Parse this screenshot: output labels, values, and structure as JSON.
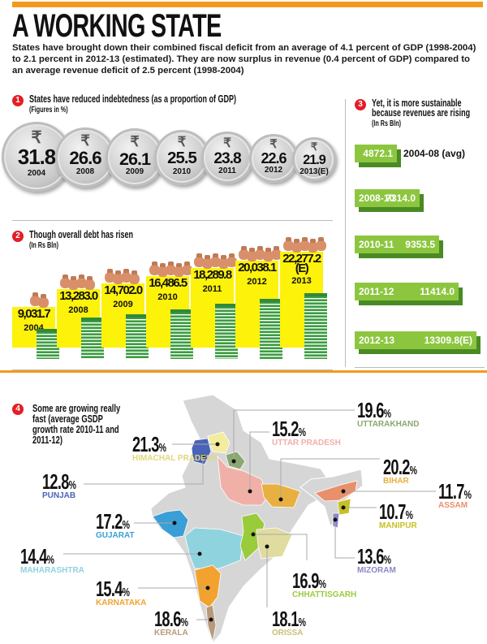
{
  "title": "A WORKING STATE",
  "intro": "States have brought down their combined fiscal deficit from an average of 4.1 percent of GDP (1998-2004) to 2.1 percent in 2012-13 (estimated). They are now surplus in revenue (0.4 percent of GDP) compared to an average revenue deficit of 2.5 percent (1998-2004)",
  "colors": {
    "accent": "#f39a1e",
    "badge": "#e41e26",
    "debt_bar": "#fdf20a",
    "revenue_bar": "#8cc63f"
  },
  "chart_data": [
    {
      "type": "bar",
      "number": "1",
      "title": "States have reduced indebtedness (as a proportion of GDP)",
      "subtitle": "(Figures in %)",
      "icon": "rupee-coin-icon",
      "categories": [
        "2004",
        "2008",
        "2009",
        "2010",
        "2011",
        "2012",
        "2013"
      ],
      "category_suffix": [
        "",
        "",
        "",
        "",
        "",
        "",
        "(E)"
      ],
      "values": [
        31.8,
        26.6,
        26.1,
        25.5,
        23.8,
        22.6,
        21.9
      ],
      "value_labels": [
        "31.8",
        "26.6",
        "26.1",
        "25.5",
        "23.8",
        "22.6",
        "21.9"
      ]
    },
    {
      "type": "bar",
      "number": "2",
      "title": "Though overall debt has risen",
      "subtitle": "(In Rs Bln)",
      "categories": [
        "2004",
        "2008",
        "2009",
        "2010",
        "2011",
        "2012",
        "2013"
      ],
      "values": [
        9031.7,
        13283.0,
        14702.0,
        16486.5,
        18289.8,
        20038.1,
        22277.2
      ],
      "value_labels": [
        "9,031.7",
        "13,283.0",
        "14,702.0",
        "16,486.5",
        "18,289.8",
        "20,038.1",
        "22,277.2\n(E)"
      ]
    },
    {
      "type": "bar",
      "orientation": "horizontal",
      "number": "3",
      "title": "Yet, it is more sustainable because revenues are rising",
      "subtitle": "(In Rs Bln)",
      "categories": [
        "2004-08 (avg)",
        "2008-10",
        "2010-11",
        "2011-12",
        "2012-13"
      ],
      "values": [
        4872.1,
        7314.0,
        9353.5,
        11414.0,
        13309.8
      ],
      "value_labels": [
        "4872.1",
        "7314.0",
        "9353.5",
        "11414.0",
        "13309.8(E)"
      ]
    },
    {
      "type": "map",
      "number": "4",
      "title": "Some are growing really fast (average GSDP growth rate 2010-11 and 2011-12)",
      "regions": [
        {
          "name": "HIMACHAL PRADESH",
          "value": 21.3,
          "label": "21.3",
          "color": "#f3ec9c"
        },
        {
          "name": "PUNJAB",
          "value": 12.8,
          "label": "12.8",
          "color": "#4a63b8"
        },
        {
          "name": "GUJARAT",
          "value": 17.2,
          "label": "17.2",
          "color": "#3a9fd6"
        },
        {
          "name": "MAHARASHTRA",
          "value": 14.4,
          "label": "14.4",
          "color": "#8fd3de"
        },
        {
          "name": "KARNATAKA",
          "value": 15.4,
          "label": "15.4",
          "color": "#f2a22e"
        },
        {
          "name": "KERALA",
          "value": 18.6,
          "label": "18.6",
          "color": "#b89a7a"
        },
        {
          "name": "UTTARAKHAND",
          "value": 19.6,
          "label": "19.6",
          "color": "#8aa870"
        },
        {
          "name": "UTTAR PRADESH",
          "value": 15.2,
          "label": "15.2",
          "color": "#f0b0a8"
        },
        {
          "name": "BIHAR",
          "value": 20.2,
          "label": "20.2",
          "color": "#e8b040"
        },
        {
          "name": "ASSAM",
          "value": 11.7,
          "label": "11.7",
          "color": "#e8906a"
        },
        {
          "name": "MANIPUR",
          "value": 10.7,
          "label": "10.7",
          "color": "#c8c020"
        },
        {
          "name": "MIZORAM",
          "value": 13.6,
          "label": "13.6",
          "color": "#8a88c8"
        },
        {
          "name": "CHHATTISGARH",
          "value": 16.9,
          "label": "16.9",
          "color": "#9acb3a"
        },
        {
          "name": "ORISSA",
          "value": 18.1,
          "label": "18.1",
          "color": "#e0dca0"
        }
      ],
      "unit": "%"
    }
  ]
}
